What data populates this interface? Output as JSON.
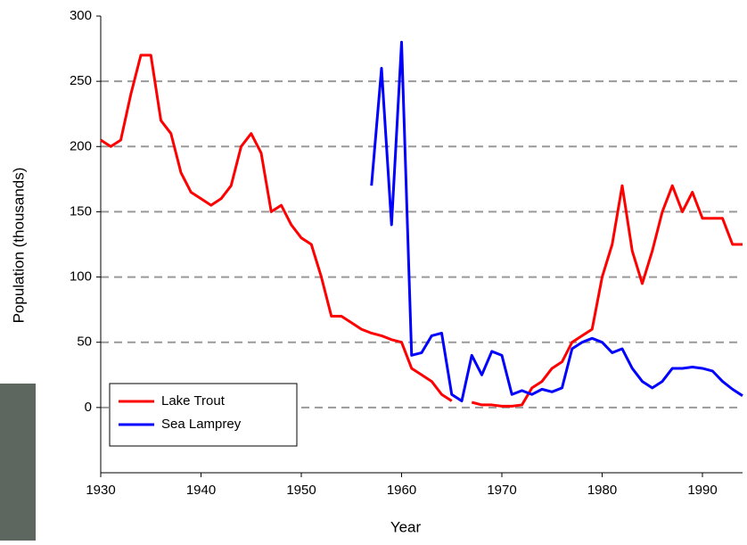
{
  "chart_data": {
    "type": "line",
    "xlabel": "Year",
    "ylabel": "Population (thousands)",
    "x": [
      1930,
      1931,
      1932,
      1933,
      1934,
      1935,
      1936,
      1937,
      1938,
      1939,
      1940,
      1941,
      1942,
      1943,
      1944,
      1945,
      1946,
      1947,
      1948,
      1949,
      1950,
      1951,
      1952,
      1953,
      1954,
      1955,
      1956,
      1957,
      1958,
      1959,
      1960,
      1961,
      1962,
      1963,
      1964,
      1965,
      1966,
      1967,
      1968,
      1969,
      1970,
      1971,
      1972,
      1973,
      1974,
      1975,
      1976,
      1977,
      1978,
      1979,
      1980,
      1981,
      1982,
      1983,
      1984,
      1985,
      1986,
      1987,
      1988,
      1989,
      1990,
      1991,
      1992,
      1993,
      1994
    ],
    "series": [
      {
        "name": "Lake Trout",
        "color": "#ff0000",
        "values": [
          205,
          200,
          205,
          240,
          270,
          270,
          220,
          210,
          180,
          165,
          160,
          155,
          160,
          170,
          200,
          210,
          195,
          150,
          155,
          140,
          130,
          125,
          100,
          70,
          70,
          65,
          60,
          57,
          55,
          52,
          50,
          30,
          25,
          20,
          10,
          5,
          null,
          4,
          2,
          2,
          1,
          1,
          2,
          15,
          20,
          30,
          35,
          50,
          55,
          60,
          100,
          125,
          170,
          120,
          95,
          120,
          150,
          170,
          150,
          165,
          145,
          145,
          145,
          125,
          125
        ]
      },
      {
        "name": "Sea Lamprey",
        "color": "#0000ff",
        "values": [
          null,
          null,
          null,
          null,
          null,
          null,
          null,
          null,
          null,
          null,
          null,
          null,
          null,
          null,
          null,
          null,
          null,
          null,
          null,
          null,
          null,
          null,
          null,
          null,
          null,
          null,
          null,
          170,
          260,
          140,
          280,
          40,
          42,
          55,
          57,
          10,
          5,
          40,
          25,
          43,
          40,
          10,
          13,
          10,
          14,
          12,
          15,
          45,
          50,
          53,
          50,
          42,
          45,
          30,
          20,
          15,
          20,
          30,
          30,
          31,
          30,
          28,
          20,
          14,
          9
        ]
      }
    ],
    "xlim": [
      1930,
      1994
    ],
    "xticks": [
      1930,
      1940,
      1950,
      1960,
      1970,
      1980,
      1990
    ],
    "ylim": [
      -50,
      300
    ],
    "yticks": [
      0,
      50,
      100,
      150,
      200,
      250,
      300
    ],
    "grid": true,
    "legend": "lower left"
  }
}
